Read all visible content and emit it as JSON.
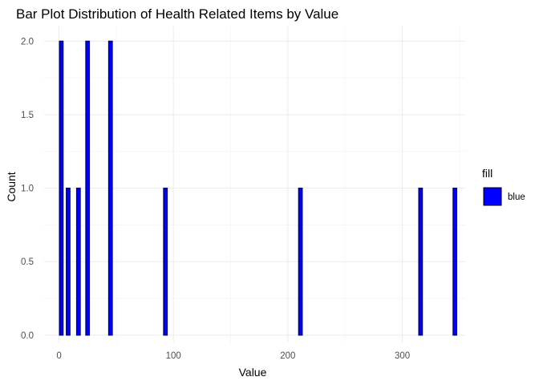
{
  "chart_data": {
    "type": "bar",
    "title": "Bar Plot Distribution of Health Related Items by Value",
    "xlabel": "Value",
    "ylabel": "Count",
    "xlim": [
      -13,
      355
    ],
    "ylim": [
      -0.05,
      2.1
    ],
    "xticks": [
      0,
      100,
      200,
      300
    ],
    "yticks": [
      0.0,
      0.5,
      1.0,
      1.5,
      2.0
    ],
    "ytick_labels": [
      "0.0",
      "0.5",
      "1.0",
      "1.5",
      "2.0"
    ],
    "grid": true,
    "bar_width": 3.2,
    "bar_fill": "#0000ff",
    "bar_stroke": "#000066",
    "legend": {
      "title": "fill",
      "position": "right",
      "entries": [
        {
          "label": "blue",
          "color": "#0000ff"
        }
      ]
    },
    "x": [
      2,
      8,
      17,
      25,
      45,
      93,
      211,
      316,
      346
    ],
    "values": [
      2,
      1,
      1,
      2,
      2,
      1,
      1,
      1,
      1
    ]
  }
}
